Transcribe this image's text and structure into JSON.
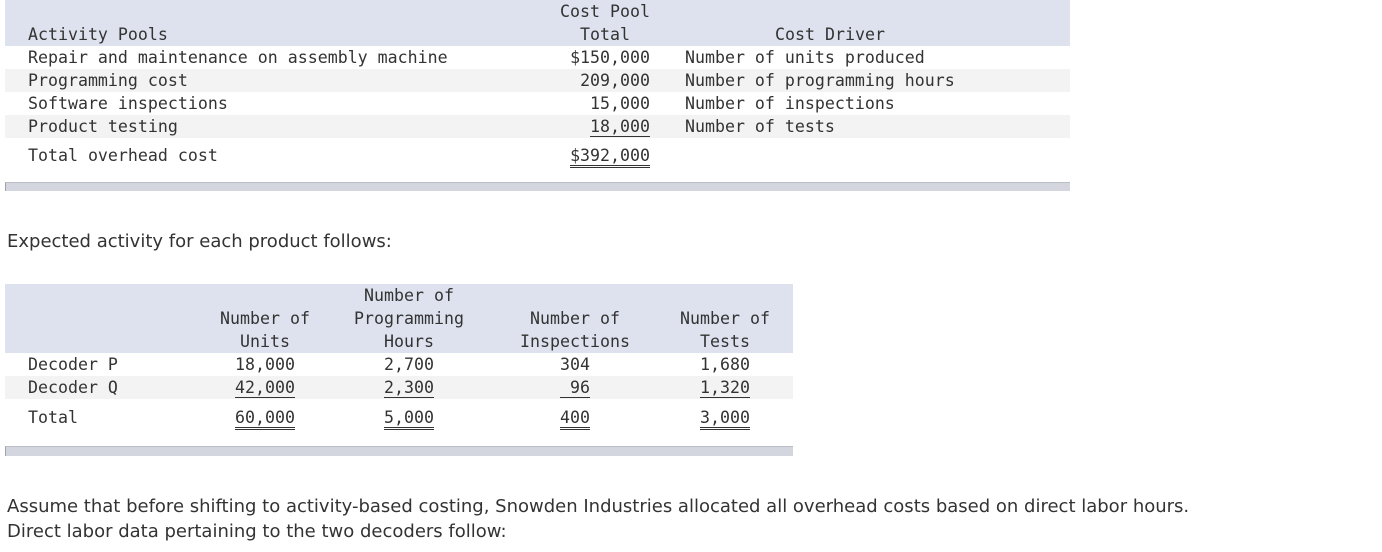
{
  "cost_table": {
    "header": {
      "pool_label": "Activity Pools",
      "total_line1": "Cost Pool",
      "total_line2": "Total",
      "driver_label": "Cost Driver"
    },
    "rows": [
      {
        "pool": "Repair and maintenance on assembly machine",
        "total": "$150,000",
        "driver": "Number of units produced"
      },
      {
        "pool": "Programming cost",
        "total": "209,000",
        "driver": "Number of programming hours"
      },
      {
        "pool": "Software inspections",
        "total": "15,000",
        "driver": "Number of inspections"
      },
      {
        "pool": "Product testing",
        "total": "18,000",
        "driver": "Number of tests"
      }
    ],
    "total_row": {
      "label": "Total overhead cost",
      "total": "$392,000"
    }
  },
  "intro_text": "Expected activity for each product follows:",
  "activity_table": {
    "headers": {
      "units": [
        "Number of",
        "Units"
      ],
      "prog_hours": [
        "Number of",
        "Programming",
        "Hours"
      ],
      "inspections": [
        "Number of",
        "Inspections"
      ],
      "tests": [
        "Number of",
        "Tests"
      ]
    },
    "rows": [
      {
        "product": "Decoder P",
        "units": "18,000",
        "prog_hours": "2,700",
        "inspections": "304",
        "tests": "1,680"
      },
      {
        "product": "Decoder Q",
        "units": "42,000",
        "prog_hours": "2,300",
        "inspections": "96",
        "tests": "1,320"
      }
    ],
    "total_row": {
      "product": "Total",
      "units": "60,000",
      "prog_hours": "5,000",
      "inspections": "400",
      "tests": "3,000"
    }
  },
  "closing_text_line1": "Assume that before shifting to activity-based costing, Snowden Industries allocated all overhead costs based on direct labor hours.",
  "closing_text_line2": "Direct labor data pertaining to the two decoders follow:"
}
